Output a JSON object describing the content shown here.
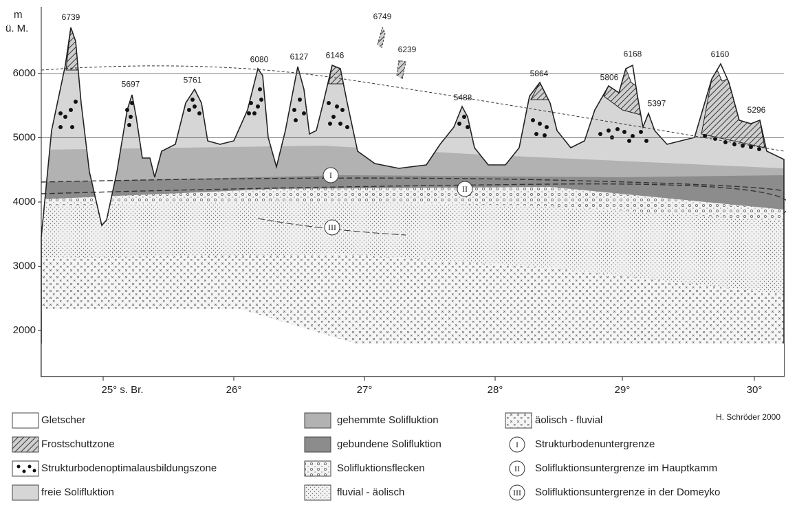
{
  "axis": {
    "unit": [
      "m",
      "ü. M."
    ],
    "yticks": [
      2000,
      3000,
      4000,
      5000,
      6000
    ],
    "xticks": [
      "25° s. Br.",
      "26°",
      "27°",
      "28°",
      "29°",
      "30°"
    ]
  },
  "peaks": [
    6739,
    5697,
    5761,
    6080,
    6127,
    6146,
    6749,
    6239,
    5488,
    5864,
    5806,
    6168,
    5397,
    6160,
    5296
  ],
  "markers": [
    "I",
    "II",
    "III"
  ],
  "legend": [
    "Gletscher",
    "Frostschuttzone",
    "Strukturbodenoptimalausbildungszone",
    "freie Solifluktion",
    "gehemmte Solifluktion",
    "gebundene Solifluktion",
    "Solifluktionsflecken",
    "fluvial - äolisch",
    "äolisch - fluvial",
    "Strukturbodenuntergrenze",
    "Solifluktionsuntergrenze im Hauptkamm",
    "Solifluktionsuntergrenze in der Domeyko"
  ],
  "credit": "H. Schröder 2000"
}
